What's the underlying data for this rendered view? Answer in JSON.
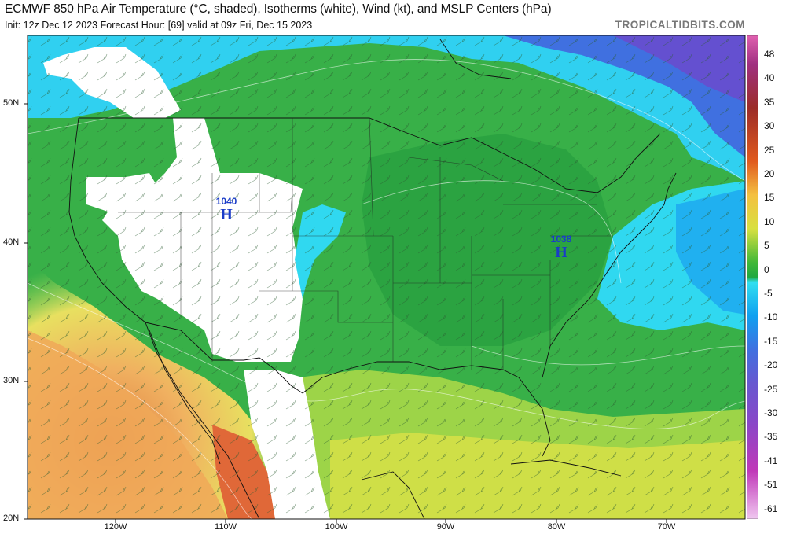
{
  "header": {
    "title": "ECMWF 850 hPa Air Temperature (°C, shaded), Isotherms (white), Wind (kt), and MSLP Centers (hPa)",
    "subtitle": "Init: 12z Dec 12 2023   Forecast Hour: [69]   valid at 09z Fri, Dec 15 2023",
    "brand": "TROPICALTIDBITS.COM"
  },
  "map": {
    "lat_labels": [
      "50N",
      "40N",
      "30N",
      "20N"
    ],
    "lon_labels": [
      "120W",
      "110W",
      "100W",
      "90W",
      "80W",
      "70W"
    ],
    "pressure_centers": [
      {
        "value": "1040",
        "symbol": "H"
      },
      {
        "value": "1038",
        "symbol": "H"
      }
    ]
  },
  "colorbar": {
    "labels": [
      "48",
      "40",
      "35",
      "30",
      "25",
      "20",
      "15",
      "10",
      "5",
      "0",
      "-5",
      "-10",
      "-15",
      "-20",
      "-25",
      "-30",
      "-35",
      "-41",
      "-51",
      "-61"
    ],
    "colors": [
      "#e060b0",
      "#b04090",
      "#9a2a5a",
      "#9c2c28",
      "#c8321e",
      "#e05a1e",
      "#f0a040",
      "#f4d850",
      "#80d040",
      "#30b040",
      "#30d8f0",
      "#1890f0",
      "#4060e0",
      "#6858d0",
      "#8848c8",
      "#9838b8",
      "#b830b0",
      "#d040b8",
      "#e070d0",
      "#f0c8f0"
    ]
  }
}
